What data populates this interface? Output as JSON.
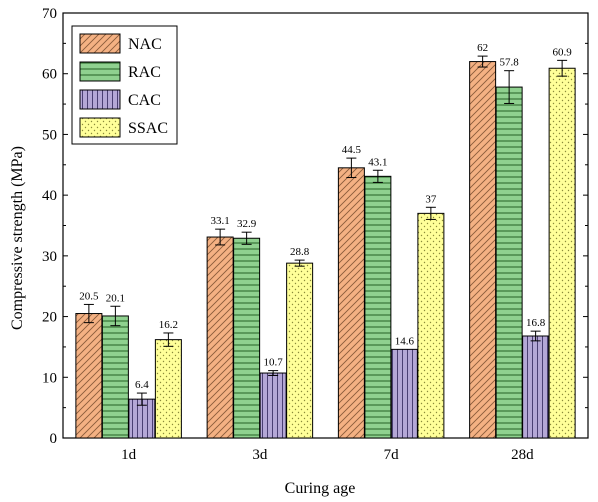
{
  "chart_data": {
    "type": "bar",
    "title": "",
    "xlabel": "Curing age",
    "ylabel": "Compressive strength (MPa)",
    "categories": [
      "1d",
      "3d",
      "7d",
      "28d"
    ],
    "ylim": [
      0,
      70
    ],
    "yticks": [
      0,
      10,
      20,
      30,
      40,
      50,
      60,
      70
    ],
    "legend_position": "top-left",
    "grid": false,
    "series": [
      {
        "name": "NAC",
        "values": [
          20.5,
          33.1,
          44.5,
          62
        ],
        "errors": [
          1.5,
          1.3,
          1.6,
          0.9
        ],
        "color": "#F4B183",
        "pattern": "diagonal"
      },
      {
        "name": "RAC",
        "values": [
          20.1,
          32.9,
          43.1,
          57.8
        ],
        "errors": [
          1.6,
          1.0,
          1.0,
          2.7
        ],
        "color": "#8FD18F",
        "pattern": "horizontal"
      },
      {
        "name": "CAC",
        "values": [
          6.4,
          10.7,
          14.6,
          16.8
        ],
        "errors": [
          1.0,
          0.4,
          0.0,
          0.8
        ],
        "color": "#B4A7D6",
        "pattern": "vertical"
      },
      {
        "name": "SSAC",
        "values": [
          16.2,
          28.8,
          37,
          60.9
        ],
        "errors": [
          1.1,
          0.5,
          1.0,
          1.3
        ],
        "color": "#FFFF99",
        "pattern": "dots"
      }
    ],
    "data_labels": [
      [
        "20.5",
        "33.1",
        "44.5",
        "62"
      ],
      [
        "20.1",
        "32.9",
        "43.1",
        "57.8"
      ],
      [
        "6.4",
        "10.7",
        "14.6",
        "16.8"
      ],
      [
        "16.2",
        "28.8",
        "37",
        "60.9"
      ]
    ]
  }
}
